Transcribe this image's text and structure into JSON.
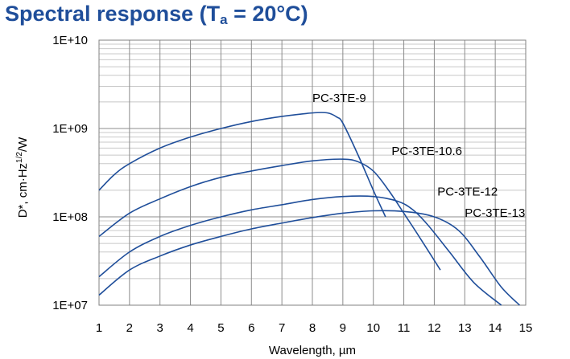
{
  "title": {
    "main": "Spectral response (T",
    "sub": "a",
    "rest": " = 20°C)"
  },
  "chart_data": {
    "type": "line",
    "title": "Spectral response (Ta = 20°C)",
    "xlabel": "Wavelength, µm",
    "ylabel_parts": {
      "main": "D*, cm·Hz",
      "sup": "1/2",
      "tail": "/W"
    },
    "xlim": [
      1,
      15
    ],
    "ylim": [
      10000000,
      10000000000
    ],
    "yscale": "log",
    "grid": true,
    "line_color": "#1f4e9a",
    "x_ticks": [
      "1",
      "2",
      "3",
      "4",
      "5",
      "6",
      "7",
      "8",
      "9",
      "10",
      "11",
      "12",
      "13",
      "14",
      "15"
    ],
    "y_ticks": [
      {
        "value": 10000000,
        "label": "1E+07"
      },
      {
        "value": 100000000,
        "label": "1E+08"
      },
      {
        "value": 1000000000,
        "label": "1E+09"
      },
      {
        "value": 10000000000,
        "label": "1E+10"
      }
    ],
    "series": [
      {
        "name": "PC-3TE-9",
        "points": [
          [
            1,
            200000000.0
          ],
          [
            1.5,
            300000000.0
          ],
          [
            2,
            400000000.0
          ],
          [
            3,
            600000000.0
          ],
          [
            4,
            800000000.0
          ],
          [
            5,
            1000000000.0
          ],
          [
            6,
            1200000000.0
          ],
          [
            7,
            1370000000.0
          ],
          [
            8,
            1500000000.0
          ],
          [
            8.5,
            1500000000.0
          ],
          [
            8.8,
            1350000000.0
          ],
          [
            9,
            1150000000.0
          ],
          [
            9.5,
            500000000.0
          ],
          [
            10,
            200000000.0
          ],
          [
            10.4,
            100000000.0
          ]
        ],
        "label_at": [
          8.0,
          2000000000.0
        ]
      },
      {
        "name": "PC-3TE-10.6",
        "points": [
          [
            1,
            60000000.0
          ],
          [
            2,
            110000000.0
          ],
          [
            3,
            160000000.0
          ],
          [
            4,
            220000000.0
          ],
          [
            5,
            280000000.0
          ],
          [
            6,
            330000000.0
          ],
          [
            7,
            380000000.0
          ],
          [
            8,
            430000000.0
          ],
          [
            9,
            450000000.0
          ],
          [
            9.5,
            420000000.0
          ],
          [
            10,
            330000000.0
          ],
          [
            10.5,
            200000000.0
          ],
          [
            11,
            110000000.0
          ],
          [
            11.5,
            60000000.0
          ],
          [
            12.2,
            25000000.0
          ]
        ],
        "label_at": [
          10.6,
          500000000.0
        ]
      },
      {
        "name": "PC-3TE-12",
        "points": [
          [
            1,
            21000000.0
          ],
          [
            2,
            40000000.0
          ],
          [
            3,
            60000000.0
          ],
          [
            4,
            80000000.0
          ],
          [
            5,
            100000000.0
          ],
          [
            6,
            120000000.0
          ],
          [
            7,
            137000000.0
          ],
          [
            8,
            157000000.0
          ],
          [
            9,
            170000000.0
          ],
          [
            10,
            170000000.0
          ],
          [
            10.8,
            150000000.0
          ],
          [
            11.3,
            120000000.0
          ],
          [
            11.8,
            80000000.0
          ],
          [
            12.5,
            40000000.0
          ],
          [
            13.3,
            18000000.0
          ],
          [
            14.2,
            10000000.0
          ]
        ],
        "label_at": [
          12.1,
          175000000.0
        ]
      },
      {
        "name": "PC-3TE-13",
        "points": [
          [
            1,
            13000000.0
          ],
          [
            2,
            25000000.0
          ],
          [
            3,
            36000000.0
          ],
          [
            4,
            48000000.0
          ],
          [
            5,
            60000000.0
          ],
          [
            6,
            73000000.0
          ],
          [
            7,
            85000000.0
          ],
          [
            8,
            98000000.0
          ],
          [
            9,
            110000000.0
          ],
          [
            10,
            117000000.0
          ],
          [
            11,
            115000000.0
          ],
          [
            12,
            100000000.0
          ],
          [
            12.8,
            70000000.0
          ],
          [
            13.5,
            35000000.0
          ],
          [
            14.2,
            16000000.0
          ],
          [
            14.8,
            10000000.0
          ]
        ],
        "label_at": [
          13.0,
          100000000.0
        ]
      }
    ]
  }
}
